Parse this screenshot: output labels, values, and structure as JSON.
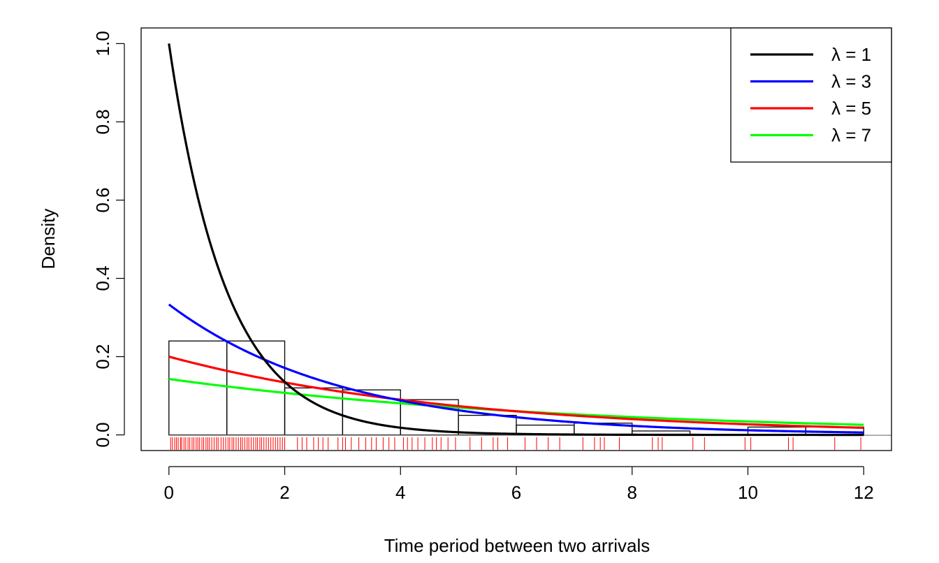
{
  "chart_data": {
    "type": "histogram",
    "xlabel": "Time period between two arrivals",
    "ylabel": "Density",
    "xlim": [
      -0.48,
      12.48
    ],
    "ylim": [
      -0.04,
      1.04
    ],
    "x_ticks": [
      "0",
      "2",
      "4",
      "6",
      "8",
      "10",
      "12"
    ],
    "y_ticks": [
      "0.0",
      "0.2",
      "0.4",
      "0.6",
      "0.8",
      "1.0"
    ],
    "grid": false,
    "legend_position": "top-right",
    "histogram": {
      "breaks": [
        0,
        1,
        2,
        3,
        4,
        5,
        6,
        7,
        8,
        9,
        10,
        11,
        12
      ],
      "density": [
        0.24,
        0.24,
        0.12,
        0.115,
        0.09,
        0.05,
        0.025,
        0.03,
        0.01,
        0.0,
        0.02,
        0.02
      ],
      "border_color": "#000000"
    },
    "series": [
      {
        "name": "λ = 1",
        "rate": 1,
        "color": "#000000",
        "x_range": [
          0,
          12
        ]
      },
      {
        "name": "λ = 3",
        "rate": 0.3333,
        "color": "#0000ff",
        "x_range": [
          0,
          12
        ]
      },
      {
        "name": "λ = 5",
        "rate": 0.2,
        "color": "#ff0000",
        "x_range": [
          0,
          12
        ]
      },
      {
        "name": "λ = 7",
        "rate": 0.142857,
        "color": "#00ff00",
        "x_range": [
          0,
          12
        ]
      }
    ],
    "baseline": {
      "y": 0,
      "color": "#808080"
    },
    "rug": {
      "color": "#ff0000",
      "values": [
        0.03,
        0.06,
        0.1,
        0.13,
        0.16,
        0.2,
        0.22,
        0.26,
        0.29,
        0.33,
        0.36,
        0.4,
        0.43,
        0.47,
        0.5,
        0.53,
        0.57,
        0.6,
        0.64,
        0.67,
        0.7,
        0.74,
        0.78,
        0.82,
        0.85,
        0.9,
        0.94,
        0.98,
        1.02,
        1.05,
        1.09,
        1.12,
        1.16,
        1.2,
        1.24,
        1.27,
        1.31,
        1.35,
        1.38,
        1.42,
        1.46,
        1.5,
        1.53,
        1.57,
        1.6,
        1.64,
        1.68,
        1.72,
        1.76,
        1.8,
        1.84,
        1.88,
        1.92,
        1.96,
        2.0,
        2.22,
        2.3,
        2.38,
        2.5,
        2.58,
        2.66,
        2.75,
        2.92,
        3.0,
        3.05,
        3.15,
        3.28,
        3.4,
        3.5,
        3.58,
        3.7,
        3.8,
        3.9,
        4.05,
        4.12,
        4.2,
        4.3,
        4.42,
        4.55,
        4.62,
        4.7,
        4.82,
        4.95,
        5.2,
        5.4,
        5.6,
        5.68,
        5.85,
        6.15,
        6.35,
        6.55,
        6.75,
        7.15,
        7.35,
        7.45,
        7.52,
        7.78,
        8.35,
        8.45,
        8.52,
        9.05,
        9.25,
        9.95,
        10.05,
        10.7,
        10.78,
        11.5,
        11.95
      ]
    }
  }
}
